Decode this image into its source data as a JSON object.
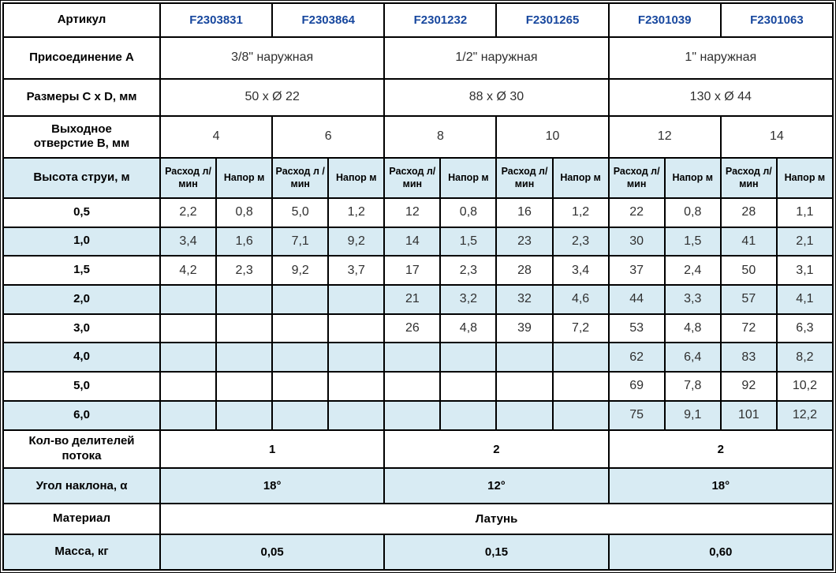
{
  "colors": {
    "row_alt_background": "#d8ebf3",
    "article_text": "#17479e",
    "border": "#000000",
    "data_text": "#303030"
  },
  "table": {
    "article_row": {
      "label": "Артикул",
      "values": [
        "F2303831",
        "F2303864",
        "F2301232",
        "F2301265",
        "F2301039",
        "F2301063"
      ]
    },
    "connection_row": {
      "label": "Присоединение А",
      "values": [
        "3/8\" наружная",
        "1/2\" наружная",
        "1\" наружная"
      ]
    },
    "dimensions_row": {
      "label": "Размеры С х D, мм",
      "values": [
        "50 x Ø 22",
        "88 x Ø 30",
        "130 x Ø 44"
      ]
    },
    "outlet_row": {
      "label": "Выходное\nотверстие В, мм",
      "values": [
        "4",
        "6",
        "8",
        "10",
        "12",
        "14"
      ]
    },
    "jet_header": {
      "label": "Высота струи, м",
      "cells": [
        "Расход л/мин",
        "Напор м",
        "Расход л /мин",
        "Напор м",
        "Расход л/мин",
        "Напор м",
        "Расход л/мин",
        "Напор м",
        "Расход л/мин",
        "Напор м",
        "Расход л/мин",
        "Напор м"
      ]
    },
    "data_rows": [
      {
        "height": "0,5",
        "values": [
          "2,2",
          "0,8",
          "5,0",
          "1,2",
          "12",
          "0,8",
          "16",
          "1,2",
          "22",
          "0,8",
          "28",
          "1,1"
        ]
      },
      {
        "height": "1,0",
        "values": [
          "3,4",
          "1,6",
          "7,1",
          "9,2",
          "14",
          "1,5",
          "23",
          "2,3",
          "30",
          "1,5",
          "41",
          "2,1"
        ]
      },
      {
        "height": "1,5",
        "values": [
          "4,2",
          "2,3",
          "9,2",
          "3,7",
          "17",
          "2,3",
          "28",
          "3,4",
          "37",
          "2,4",
          "50",
          "3,1"
        ]
      },
      {
        "height": "2,0",
        "values": [
          "",
          "",
          "",
          "",
          "21",
          "3,2",
          "32",
          "4,6",
          "44",
          "3,3",
          "57",
          "4,1"
        ]
      },
      {
        "height": "3,0",
        "values": [
          "",
          "",
          "",
          "",
          "26",
          "4,8",
          "39",
          "7,2",
          "53",
          "4,8",
          "72",
          "6,3"
        ]
      },
      {
        "height": "4,0",
        "values": [
          "",
          "",
          "",
          "",
          "",
          "",
          "",
          "",
          "62",
          "6,4",
          "83",
          "8,2"
        ]
      },
      {
        "height": "5,0",
        "values": [
          "",
          "",
          "",
          "",
          "",
          "",
          "",
          "",
          "69",
          "7,8",
          "92",
          "10,2"
        ]
      },
      {
        "height": "6,0",
        "values": [
          "",
          "",
          "",
          "",
          "",
          "",
          "",
          "",
          "75",
          "9,1",
          "101",
          "12,2"
        ]
      }
    ],
    "dividers_row": {
      "label": "Кол-во делителей\nпотока",
      "values": [
        "1",
        "2",
        "2"
      ]
    },
    "angle_row": {
      "label": "Угол наклона, α",
      "values": [
        "18°",
        "12°",
        "18°"
      ]
    },
    "material_row": {
      "label": "Материал",
      "value": "Латунь"
    },
    "mass_row": {
      "label": "Масса, кг",
      "values": [
        "0,05",
        "0,15",
        "0,60"
      ]
    }
  }
}
